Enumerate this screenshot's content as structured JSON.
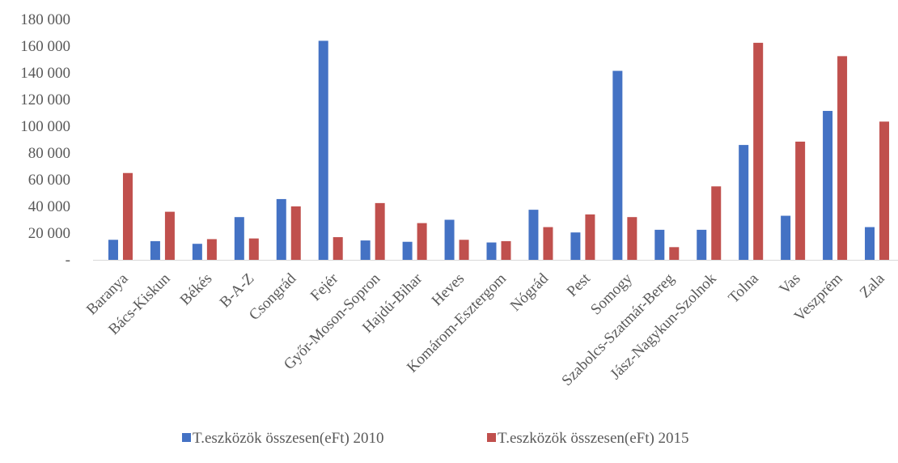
{
  "chart_data": {
    "type": "bar",
    "categories": [
      "Baranya",
      "Bács-Kiskun",
      "Békés",
      "B-A-Z",
      "Csongrád",
      "Fejér",
      "Győr-Moson-Sopron",
      "Hajdú-Bihar",
      "Heves",
      "Komárom-Esztergom",
      "Nógrád",
      "Pest",
      "Somogy",
      "Szabolcs-Szatmár-Bereg",
      "Jász-Nagykun-Szolnok",
      "Tolna",
      "Vas",
      "Veszprém",
      "Zala"
    ],
    "series": [
      {
        "name": "T.eszközök összesen(eFt) 2010",
        "color": "#4472C4",
        "values": [
          15000,
          14000,
          12000,
          32000,
          45500,
          164000,
          14500,
          13500,
          30000,
          13000,
          37500,
          20500,
          141500,
          22500,
          22500,
          86000,
          33000,
          111500,
          24500
        ]
      },
      {
        "name": "T.eszközök összesen(eFt) 2015",
        "color": "#C0504D",
        "values": [
          65000,
          36000,
          15500,
          16000,
          40000,
          17000,
          42500,
          27500,
          15000,
          14000,
          24500,
          34000,
          32000,
          9500,
          55000,
          162500,
          88500,
          152500,
          103500
        ]
      }
    ],
    "y_ticks": [
      "-",
      "20 000",
      "40 000",
      "60 000",
      "80 000",
      "100 000",
      "120 000",
      "140 000",
      "160 000",
      "180 000"
    ],
    "ylim": [
      0,
      180000
    ],
    "grid": false,
    "legend_position": "bottom"
  }
}
